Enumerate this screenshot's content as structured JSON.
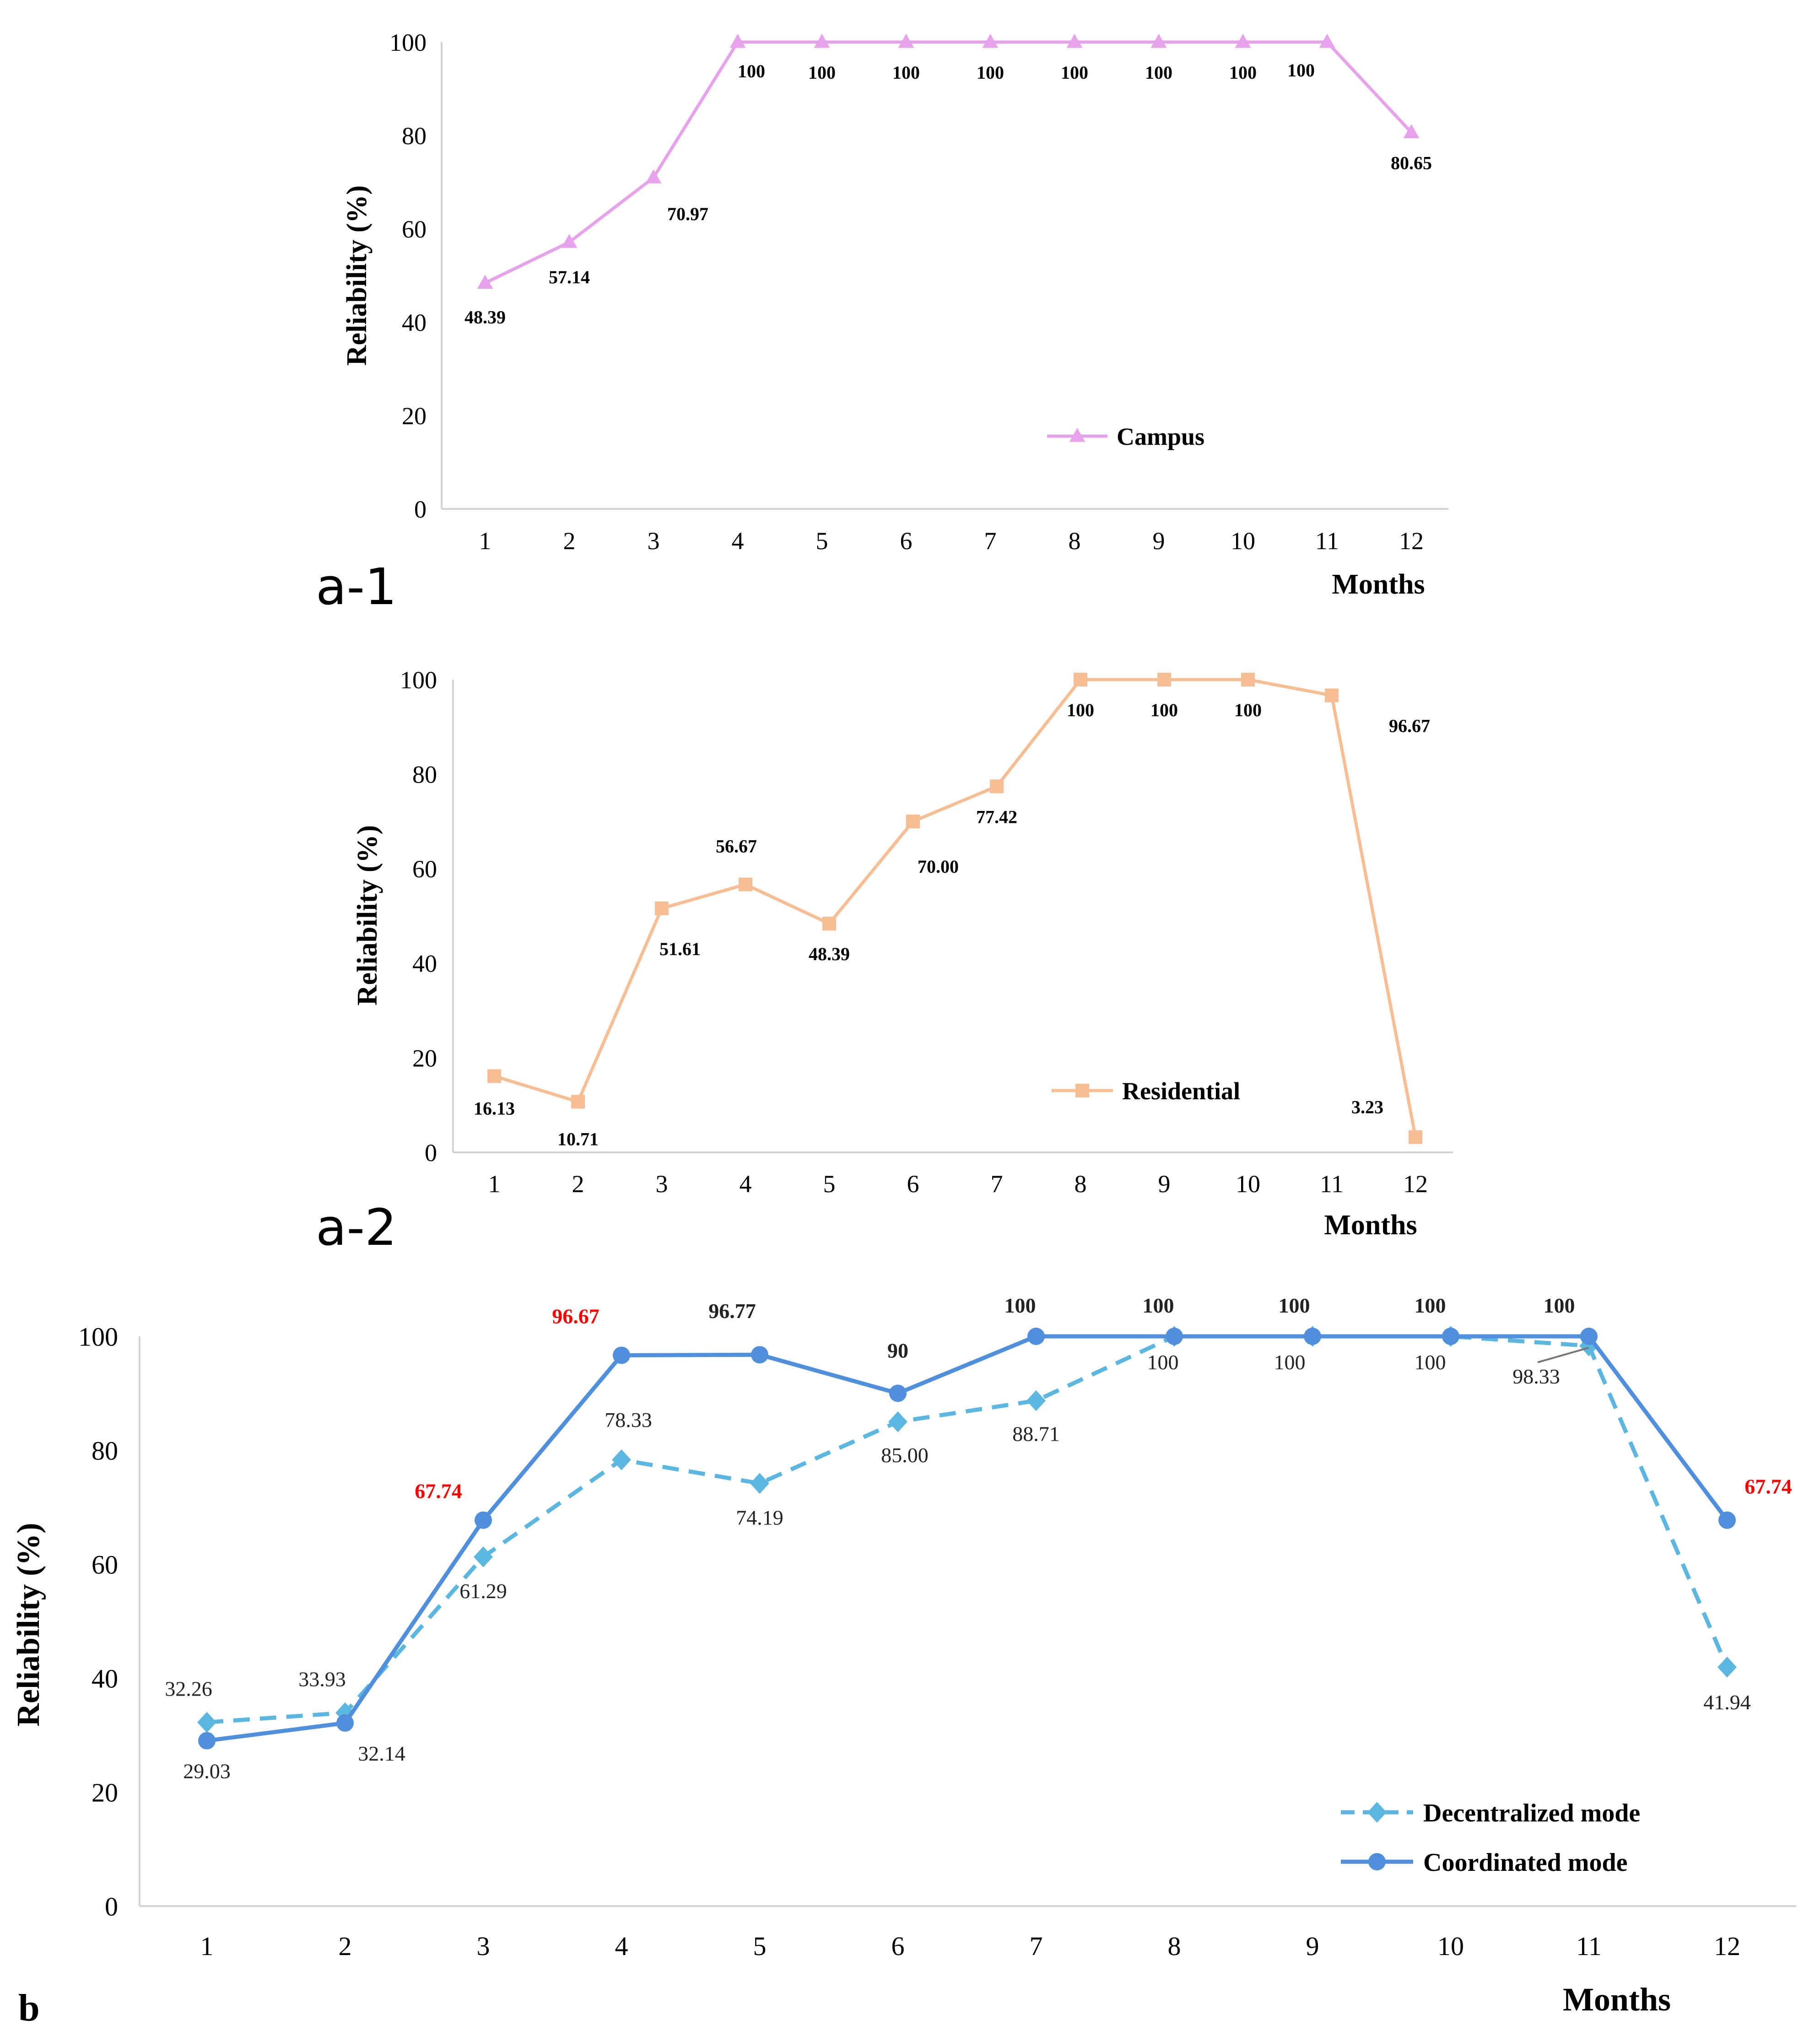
{
  "chart_data": [
    {
      "id": "a1",
      "type": "line",
      "panel_label": "a-1",
      "ylabel": "Reliability (%)",
      "xlabel": "Months",
      "categories": [
        "1",
        "2",
        "3",
        "4",
        "5",
        "6",
        "7",
        "8",
        "9",
        "10",
        "11",
        "12"
      ],
      "yticks": [
        "0",
        "20",
        "40",
        "60",
        "80",
        "100"
      ],
      "ylim": [
        0,
        100
      ],
      "grid": false,
      "legend": "bottom-right",
      "series": [
        {
          "name": "Campus",
          "color": "#e7a2ec",
          "marker": "triangle",
          "dash": false,
          "values": [
            48.39,
            57.14,
            70.97,
            100,
            100,
            100,
            100,
            100,
            100,
            100,
            100,
            80.65
          ],
          "labels": [
            "48.39",
            "57.14",
            "70.97",
            "100",
            "100",
            "100",
            "100",
            "100",
            "100",
            "100",
            "100",
            "80.65"
          ]
        }
      ]
    },
    {
      "id": "a2",
      "type": "line",
      "panel_label": "a-2",
      "ylabel": "Reliability (%)",
      "xlabel": "Months",
      "categories": [
        "1",
        "2",
        "3",
        "4",
        "5",
        "6",
        "7",
        "8",
        "9",
        "10",
        "11",
        "12"
      ],
      "yticks": [
        "0",
        "20",
        "40",
        "60",
        "80",
        "100"
      ],
      "ylim": [
        0,
        100
      ],
      "grid": false,
      "legend": "bottom-right",
      "series": [
        {
          "name": "Residential",
          "color": "#f7be94",
          "marker": "square",
          "dash": false,
          "values": [
            16.13,
            10.71,
            51.61,
            56.67,
            48.39,
            70.0,
            77.42,
            100,
            100,
            100,
            96.67,
            3.23
          ],
          "labels": [
            "16.13",
            "10.71",
            "51.61",
            "56.67",
            "48.39",
            "70.00",
            "77.42",
            "100",
            "100",
            "100",
            "96.67",
            "3.23"
          ]
        }
      ]
    },
    {
      "id": "b",
      "type": "line",
      "panel_label": "b",
      "ylabel": "Reliability (%)",
      "xlabel": "Months",
      "categories": [
        "1",
        "2",
        "3",
        "4",
        "5",
        "6",
        "7",
        "8",
        "9",
        "10",
        "11",
        "12"
      ],
      "yticks": [
        "0",
        "20",
        "40",
        "60",
        "80",
        "100"
      ],
      "ylim": [
        0,
        100
      ],
      "grid": false,
      "legend": "bottom-right",
      "series": [
        {
          "name": "Decentralized mode",
          "color": "#5bb6e0",
          "marker": "diamond",
          "dash": true,
          "values": [
            32.26,
            33.93,
            61.29,
            78.33,
            74.19,
            85.0,
            88.71,
            100,
            100,
            100,
            98.33,
            41.94
          ],
          "labels": [
            "32.26",
            "33.93",
            "61.29",
            "78.33",
            "74.19",
            "85.00",
            "88.71",
            "100",
            "100",
            "100",
            "98.33",
            "41.94"
          ]
        },
        {
          "name": "Coordinated mode",
          "color": "#4f8fdc",
          "marker": "circle",
          "dash": false,
          "values": [
            29.03,
            32.14,
            67.74,
            96.67,
            96.77,
            90,
            100,
            100,
            100,
            100,
            100,
            67.74
          ],
          "labels": [
            "29.03",
            "32.14",
            "67.74",
            "96.67",
            "96.77",
            "90",
            "100",
            "100",
            "100",
            "100",
            "100",
            "67.74"
          ],
          "highlight_color": "#ff0000",
          "highlight_labels": [
            2,
            3,
            11
          ]
        }
      ]
    }
  ]
}
